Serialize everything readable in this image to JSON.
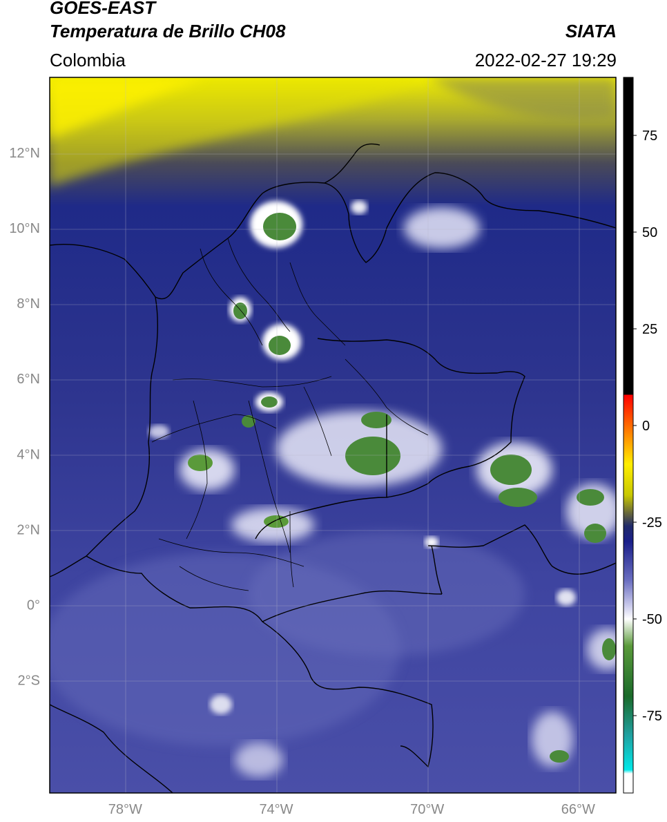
{
  "header": {
    "satellite": "GOES-EAST",
    "product": "Temperatura de Brillo CH08",
    "region": "Colombia",
    "source": "SIATA",
    "datetime": "2022-02-27 19:29"
  },
  "map": {
    "lon_range": [
      -80,
      -65
    ],
    "lat_range": [
      -5,
      14
    ],
    "lat_ticks": [
      {
        "value": 12,
        "label": "12°N"
      },
      {
        "value": 10,
        "label": "10°N"
      },
      {
        "value": 8,
        "label": "8°N"
      },
      {
        "value": 6,
        "label": "6°N"
      },
      {
        "value": 4,
        "label": "4°N"
      },
      {
        "value": 2,
        "label": "2°N"
      },
      {
        "value": 0,
        "label": "0°"
      },
      {
        "value": -2,
        "label": "2°S"
      }
    ],
    "lon_ticks": [
      {
        "value": -78,
        "label": "78°W"
      },
      {
        "value": -74,
        "label": "74°W"
      },
      {
        "value": -70,
        "label": "70°W"
      },
      {
        "value": -66,
        "label": "66°W"
      }
    ]
  },
  "colorbar": {
    "range": [
      -95,
      90
    ],
    "ticks": [
      {
        "value": 75,
        "label": "75"
      },
      {
        "value": 50,
        "label": "50"
      },
      {
        "value": 25,
        "label": "25"
      },
      {
        "value": 0,
        "label": "0"
      },
      {
        "value": -25,
        "label": "-25"
      },
      {
        "value": -50,
        "label": "-50"
      },
      {
        "value": -75,
        "label": "-75"
      }
    ],
    "stops": [
      {
        "v": 90,
        "color": "#000000"
      },
      {
        "v": 8,
        "color": "#000000"
      },
      {
        "v": 7.9,
        "color": "#ff0000"
      },
      {
        "v": 0,
        "color": "#ff6a00"
      },
      {
        "v": -10,
        "color": "#ffee00"
      },
      {
        "v": -18,
        "color": "#c8c800"
      },
      {
        "v": -23,
        "color": "#606040"
      },
      {
        "v": -26,
        "color": "#202a6a"
      },
      {
        "v": -30,
        "color": "#1a1f8a"
      },
      {
        "v": -40,
        "color": "#6a6ec0"
      },
      {
        "v": -47,
        "color": "#d0d0ee"
      },
      {
        "v": -50,
        "color": "#ffffff"
      },
      {
        "v": -57,
        "color": "#5a9a3a"
      },
      {
        "v": -70,
        "color": "#1a6a2a"
      },
      {
        "v": -80,
        "color": "#20a0a0"
      },
      {
        "v": -89,
        "color": "#00e8e8"
      },
      {
        "v": -90,
        "color": "#ffffff"
      }
    ]
  }
}
